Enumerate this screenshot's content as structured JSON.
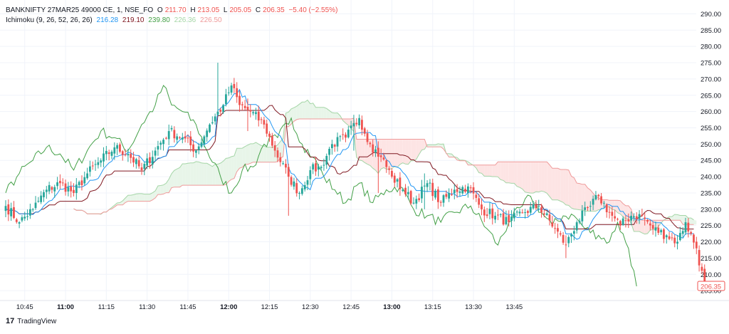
{
  "legend": {
    "symbol": "BANKNIFTY 27MAR25 49000 CE, 1, NSE_FO",
    "o_label": "O",
    "o_value": "211.70",
    "h_label": "H",
    "h_value": "213.05",
    "l_label": "L",
    "l_value": "205.05",
    "c_label": "C",
    "c_value": "206.35",
    "change": "−5.40 (−2.55%)",
    "indicator": "Ichimoku (9, 26, 52, 26, 26)",
    "ind_values": [
      "216.28",
      "219.10",
      "239.80",
      "226.36",
      "226.50"
    ]
  },
  "colors": {
    "up": "#26a69a",
    "down": "#ef5350",
    "conversion": "#2196f3",
    "base": "#801922",
    "lagging": "#43a047",
    "span_a": "#a5d6a7",
    "span_b": "#ef9a9a",
    "cloud_green": "#e8f5e9",
    "cloud_red": "#fde4e4",
    "grid": "#f0f3fa",
    "text": "#131722"
  },
  "price_tag": "206.35",
  "brand": "TradingView",
  "chart_data": {
    "type": "candlestick",
    "title": "BANKNIFTY 27MAR25 49000 CE, 1, NSE_FO",
    "x_ticks": [
      "10:45",
      "11:00",
      "11:15",
      "11:30",
      "11:45",
      "12:00",
      "12:15",
      "12:30",
      "12:45",
      "13:00",
      "13:15",
      "13:30",
      "13:45"
    ],
    "x_tick_bold": [
      false,
      true,
      false,
      false,
      false,
      true,
      false,
      false,
      false,
      true,
      false,
      false,
      false
    ],
    "y_ticks": [
      "205.00",
      "210.00",
      "215.00",
      "220.00",
      "225.00",
      "230.00",
      "235.00",
      "240.00",
      "245.00",
      "250.00",
      "255.00",
      "260.00",
      "265.00",
      "270.00",
      "275.00",
      "280.00",
      "285.00",
      "290.00"
    ],
    "ylim": [
      203.5,
      292.5
    ],
    "bar_minutes": 1,
    "first_time": "10:38",
    "close_anchors": [
      [
        0,
        231
      ],
      [
        5,
        226
      ],
      [
        10,
        230
      ],
      [
        15,
        236
      ],
      [
        20,
        238
      ],
      [
        25,
        235
      ],
      [
        30,
        241
      ],
      [
        35,
        245
      ],
      [
        40,
        249
      ],
      [
        45,
        247
      ],
      [
        50,
        242
      ],
      [
        55,
        248
      ],
      [
        60,
        254
      ],
      [
        65,
        252
      ],
      [
        70,
        248
      ],
      [
        75,
        256
      ],
      [
        80,
        262
      ],
      [
        83,
        268
      ],
      [
        86,
        262
      ],
      [
        90,
        260
      ],
      [
        95,
        256
      ],
      [
        99,
        248
      ],
      [
        104,
        240
      ],
      [
        108,
        235
      ],
      [
        112,
        242
      ],
      [
        116,
        243
      ],
      [
        120,
        250
      ],
      [
        125,
        252
      ],
      [
        130,
        258
      ],
      [
        134,
        250
      ],
      [
        138,
        246
      ],
      [
        142,
        240
      ],
      [
        146,
        236
      ],
      [
        150,
        232
      ],
      [
        155,
        238
      ],
      [
        160,
        232
      ],
      [
        165,
        236
      ],
      [
        170,
        237
      ],
      [
        175,
        230
      ],
      [
        180,
        228
      ],
      [
        185,
        226
      ],
      [
        190,
        229
      ],
      [
        196,
        231
      ],
      [
        202,
        224
      ],
      [
        206,
        219
      ],
      [
        210,
        226
      ],
      [
        215,
        231
      ],
      [
        218,
        234
      ],
      [
        222,
        229
      ],
      [
        226,
        225
      ],
      [
        230,
        228
      ],
      [
        234,
        228
      ],
      [
        238,
        224
      ],
      [
        243,
        222
      ],
      [
        247,
        220
      ],
      [
        250,
        226
      ],
      [
        254,
        218
      ],
      [
        257,
        206.35
      ]
    ],
    "spikes": [
      [
        78,
        275,
        261
      ],
      [
        89,
        264,
        254
      ],
      [
        104,
        240,
        228
      ],
      [
        128,
        259,
        248
      ],
      [
        137,
        248,
        235
      ],
      [
        154,
        241,
        230
      ],
      [
        206,
        222,
        215
      ]
    ],
    "last_bar": {
      "open": 211.7,
      "high": 213.05,
      "low": 205.05,
      "close": 206.35
    },
    "indicator_params": [
      9,
      26,
      52,
      26,
      26
    ],
    "indicator_last": {
      "conversion": 216.28,
      "base": 219.1,
      "lagging": 239.8,
      "span_a": 226.36,
      "span_b": 226.5
    }
  }
}
